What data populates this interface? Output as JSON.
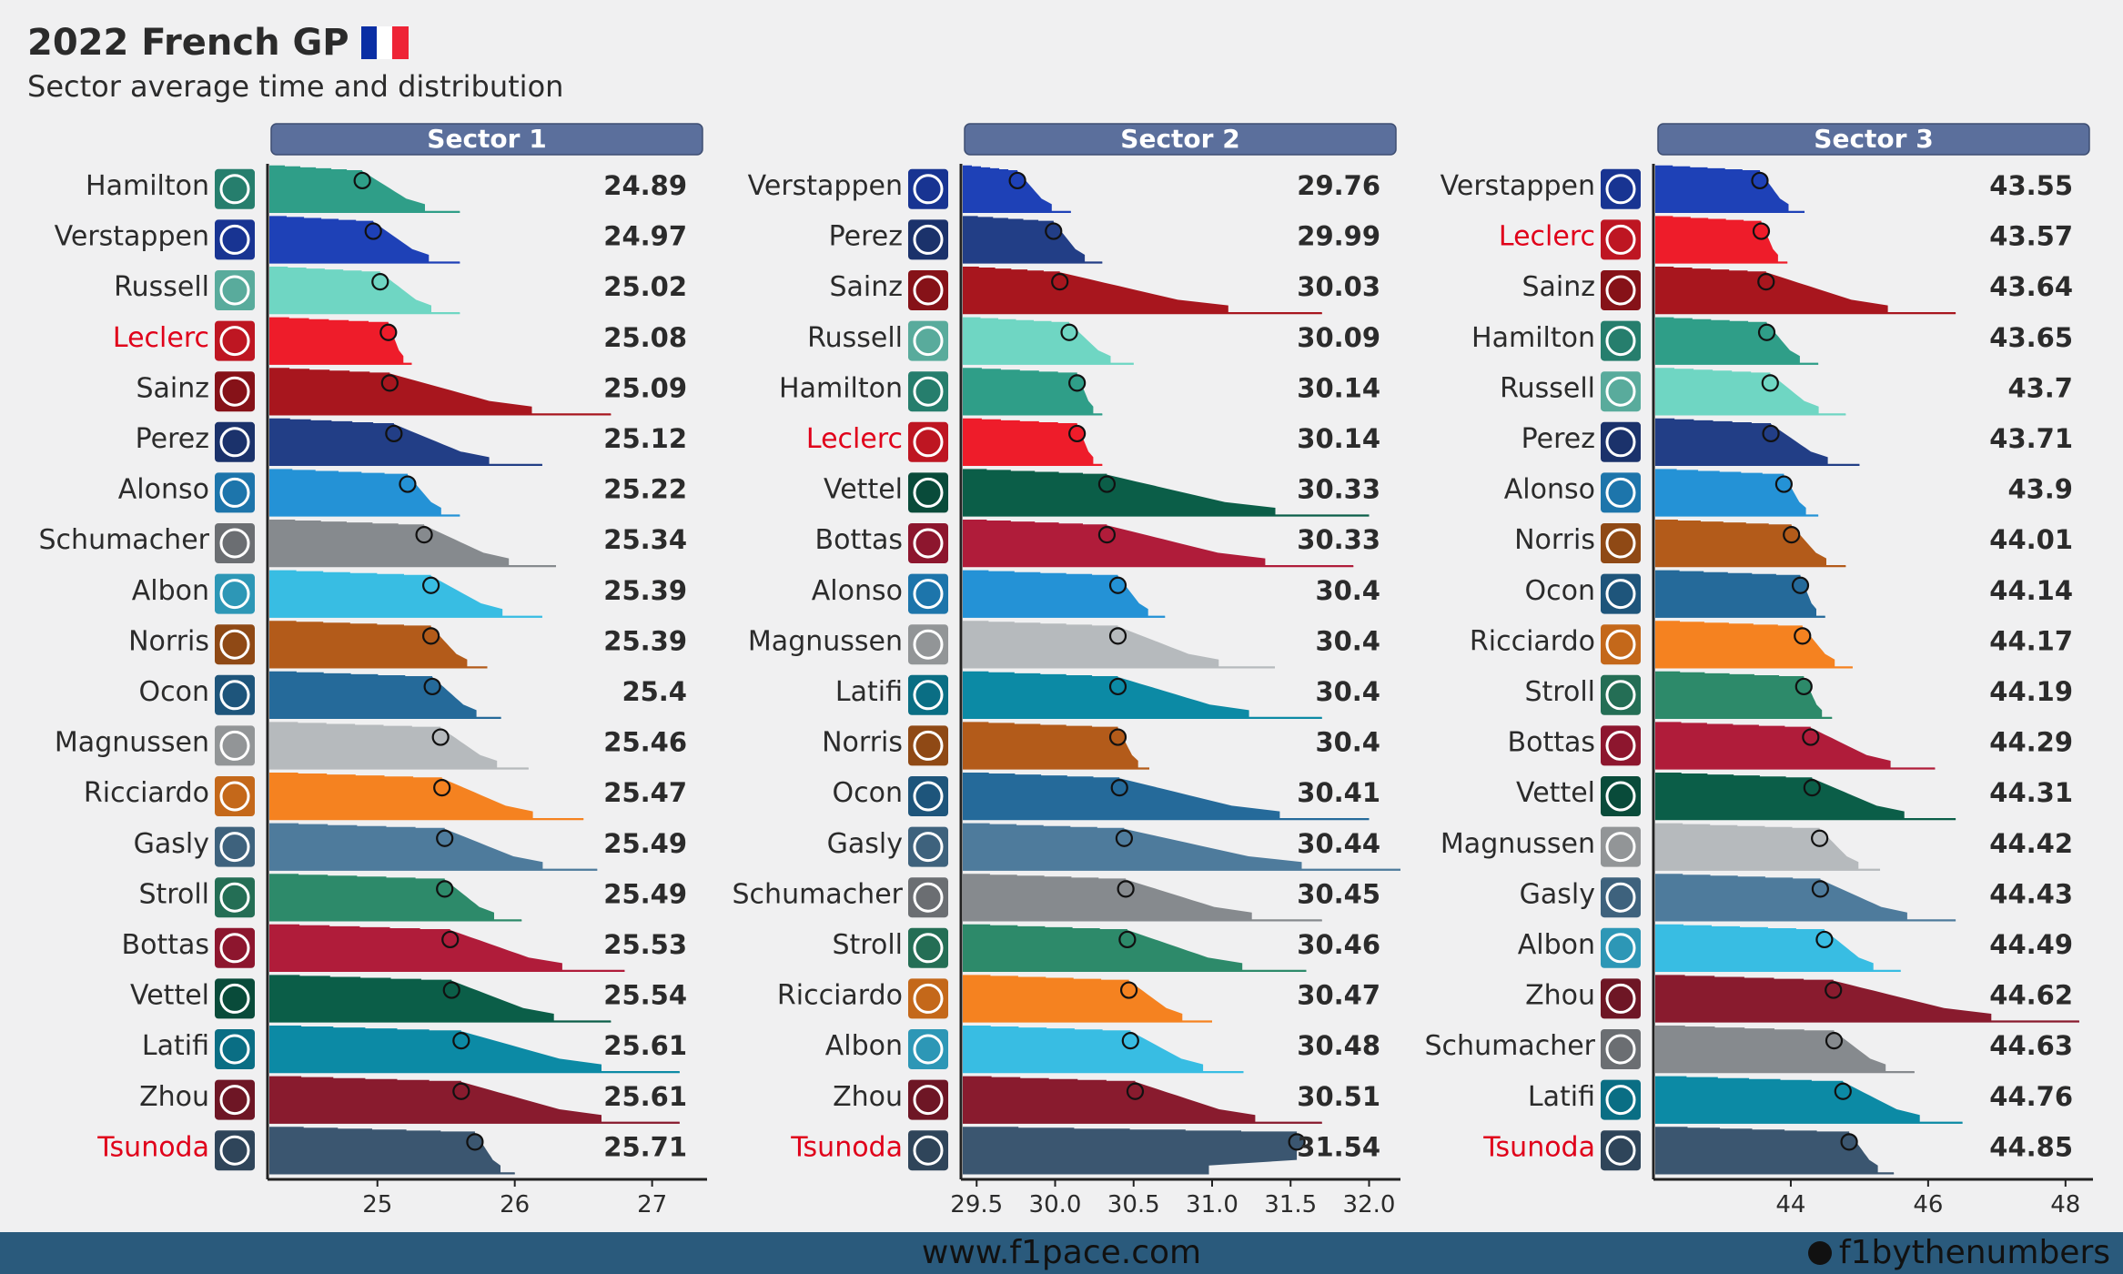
{
  "header": {
    "title": "2022 French GP",
    "subtitle": "Sector average time and distribution",
    "flag_colors": [
      "#0a2ea4",
      "#ffffff",
      "#ee2436"
    ]
  },
  "footer": {
    "url": "www.f1pace.com",
    "brand": "f1bythenumbers"
  },
  "team_colors": {
    "Red Bull": "#1e41b7",
    "Red Bull 2": "#223e86",
    "Ferrari": "#ee1c2a",
    "Ferrari 2": "#a8161e",
    "Mercedes": "#2f9e88",
    "Mercedes 2": "#6fd6c3",
    "Alpine": "#2492d6",
    "Alpine 2": "#256a9a",
    "Haas": "#868a8e",
    "Haas 2": "#b6babd",
    "Williams": "#38bde3",
    "Williams 2": "#0c8aa5",
    "McLaren": "#b35b1a",
    "McLaren 2": "#f58220",
    "AlphaTauri": "#4e7b9c",
    "AlphaTauri 2": "#3b5670",
    "Aston Martin": "#2d8a6a",
    "Aston Martin 2": "#0b5e48",
    "Alfa Romeo": "#b01c3a",
    "Alfa Romeo 2": "#891b2e"
  },
  "highlight_color": "#e0001a",
  "chart_data": [
    {
      "type": "distribution",
      "title": "Sector 1",
      "xlim": [
        24.2,
        27.4
      ],
      "xticks": [
        25,
        26,
        27
      ],
      "drivers": [
        {
          "name": "Hamilton",
          "team": "Mercedes",
          "color": "#2f9e88",
          "value": 24.89,
          "label": "24.89",
          "tail": 25.6
        },
        {
          "name": "Verstappen",
          "team": "Red Bull",
          "color": "#1e41b7",
          "value": 24.97,
          "label": "24.97",
          "tail": 25.6
        },
        {
          "name": "Russell",
          "team": "Mercedes",
          "color": "#6fd6c3",
          "value": 25.02,
          "label": "25.02",
          "tail": 25.6
        },
        {
          "name": "Leclerc",
          "team": "Ferrari",
          "color": "#ee1c2a",
          "value": 25.08,
          "label": "25.08",
          "tail": 25.25,
          "highlight": true
        },
        {
          "name": "Sainz",
          "team": "Ferrari",
          "color": "#a8161e",
          "value": 25.09,
          "label": "25.09",
          "tail": 26.7
        },
        {
          "name": "Perez",
          "team": "Red Bull",
          "color": "#223e86",
          "value": 25.12,
          "label": "25.12",
          "tail": 26.2
        },
        {
          "name": "Alonso",
          "team": "Alpine",
          "color": "#2492d6",
          "value": 25.22,
          "label": "25.22",
          "tail": 25.6
        },
        {
          "name": "Schumacher",
          "team": "Haas",
          "color": "#868a8e",
          "value": 25.34,
          "label": "25.34",
          "tail": 26.3
        },
        {
          "name": "Albon",
          "team": "Williams",
          "color": "#38bde3",
          "value": 25.39,
          "label": "25.39",
          "tail": 26.2
        },
        {
          "name": "Norris",
          "team": "McLaren",
          "color": "#b35b1a",
          "value": 25.39,
          "label": "25.39",
          "tail": 25.8
        },
        {
          "name": "Ocon",
          "team": "Alpine",
          "color": "#256a9a",
          "value": 25.4,
          "label": "25.4",
          "tail": 25.9
        },
        {
          "name": "Magnussen",
          "team": "Haas",
          "color": "#b6babd",
          "value": 25.46,
          "label": "25.46",
          "tail": 26.1
        },
        {
          "name": "Ricciardo",
          "team": "McLaren",
          "color": "#f58220",
          "value": 25.47,
          "label": "25.47",
          "tail": 26.5
        },
        {
          "name": "Gasly",
          "team": "AlphaTauri",
          "color": "#4e7b9c",
          "value": 25.49,
          "label": "25.49",
          "tail": 26.6
        },
        {
          "name": "Stroll",
          "team": "Aston Martin",
          "color": "#2d8a6a",
          "value": 25.49,
          "label": "25.49",
          "tail": 26.05
        },
        {
          "name": "Bottas",
          "team": "Alfa Romeo",
          "color": "#b01c3a",
          "value": 25.53,
          "label": "25.53",
          "tail": 26.8
        },
        {
          "name": "Vettel",
          "team": "Aston Martin",
          "color": "#0b5e48",
          "value": 25.54,
          "label": "25.54",
          "tail": 26.7
        },
        {
          "name": "Latifi",
          "team": "Williams",
          "color": "#0c8aa5",
          "value": 25.61,
          "label": "25.61",
          "tail": 27.2
        },
        {
          "name": "Zhou",
          "team": "Alfa Romeo",
          "color": "#891b2e",
          "value": 25.61,
          "label": "25.61",
          "tail": 27.2
        },
        {
          "name": "Tsunoda",
          "team": "AlphaTauri",
          "color": "#3b5670",
          "value": 25.71,
          "label": "25.71",
          "tail": 26.0,
          "highlight": true
        }
      ]
    },
    {
      "type": "distribution",
      "title": "Sector 2",
      "xlim": [
        29.4,
        32.2
      ],
      "xticks": [
        29.5,
        30.0,
        30.5,
        31.0,
        31.5,
        32.0
      ],
      "xtick_labels": [
        "29.5",
        "30.0",
        "30.5",
        "31.0",
        "31.5",
        "32.0"
      ],
      "drivers": [
        {
          "name": "Verstappen",
          "team": "Red Bull",
          "color": "#1e41b7",
          "value": 29.76,
          "label": "29.76",
          "tail": 30.1
        },
        {
          "name": "Perez",
          "team": "Red Bull",
          "color": "#223e86",
          "value": 29.99,
          "label": "29.99",
          "tail": 30.3
        },
        {
          "name": "Sainz",
          "team": "Ferrari",
          "color": "#a8161e",
          "value": 30.03,
          "label": "30.03",
          "tail": 31.7
        },
        {
          "name": "Russell",
          "team": "Mercedes",
          "color": "#6fd6c3",
          "value": 30.09,
          "label": "30.09",
          "tail": 30.5
        },
        {
          "name": "Hamilton",
          "team": "Mercedes",
          "color": "#2f9e88",
          "value": 30.14,
          "label": "30.14",
          "tail": 30.3
        },
        {
          "name": "Leclerc",
          "team": "Ferrari",
          "color": "#ee1c2a",
          "value": 30.14,
          "label": "30.14",
          "tail": 30.3,
          "highlight": true
        },
        {
          "name": "Vettel",
          "team": "Aston Martin",
          "color": "#0b5e48",
          "value": 30.33,
          "label": "30.33",
          "tail": 32.0
        },
        {
          "name": "Bottas",
          "team": "Alfa Romeo",
          "color": "#b01c3a",
          "value": 30.33,
          "label": "30.33",
          "tail": 31.9
        },
        {
          "name": "Alonso",
          "team": "Alpine",
          "color": "#2492d6",
          "value": 30.4,
          "label": "30.4",
          "tail": 30.7
        },
        {
          "name": "Magnussen",
          "team": "Haas",
          "color": "#b6babd",
          "value": 30.4,
          "label": "30.4",
          "tail": 31.4
        },
        {
          "name": "Latifi",
          "team": "Williams",
          "color": "#0c8aa5",
          "value": 30.4,
          "label": "30.4",
          "tail": 31.7
        },
        {
          "name": "Norris",
          "team": "McLaren",
          "color": "#b35b1a",
          "value": 30.4,
          "label": "30.4",
          "tail": 30.6
        },
        {
          "name": "Ocon",
          "team": "Alpine",
          "color": "#256a9a",
          "value": 30.41,
          "label": "30.41",
          "tail": 32.0
        },
        {
          "name": "Gasly",
          "team": "AlphaTauri",
          "color": "#4e7b9c",
          "value": 30.44,
          "label": "30.44",
          "tail": 32.2
        },
        {
          "name": "Schumacher",
          "team": "Haas",
          "color": "#868a8e",
          "value": 30.45,
          "label": "30.45",
          "tail": 31.7
        },
        {
          "name": "Stroll",
          "team": "Aston Martin",
          "color": "#2d8a6a",
          "value": 30.46,
          "label": "30.46",
          "tail": 31.6
        },
        {
          "name": "Ricciardo",
          "team": "McLaren",
          "color": "#f58220",
          "value": 30.47,
          "label": "30.47",
          "tail": 31.0
        },
        {
          "name": "Albon",
          "team": "Williams",
          "color": "#38bde3",
          "value": 30.48,
          "label": "30.48",
          "tail": 31.2
        },
        {
          "name": "Zhou",
          "team": "Alfa Romeo",
          "color": "#891b2e",
          "value": 30.51,
          "label": "30.51",
          "tail": 31.7
        },
        {
          "name": "Tsunoda",
          "team": "AlphaTauri",
          "color": "#3b5670",
          "value": 31.54,
          "label": "31.54",
          "tail": 30.98,
          "highlight": true
        }
      ]
    },
    {
      "type": "distribution",
      "title": "Sector 3",
      "xlim": [
        42.0,
        48.4
      ],
      "xticks": [
        44,
        46,
        48
      ],
      "drivers": [
        {
          "name": "Verstappen",
          "team": "Red Bull",
          "color": "#1e41b7",
          "value": 43.55,
          "label": "43.55",
          "tail": 44.2
        },
        {
          "name": "Leclerc",
          "team": "Ferrari",
          "color": "#ee1c2a",
          "value": 43.57,
          "label": "43.57",
          "tail": 43.95,
          "highlight": true
        },
        {
          "name": "Sainz",
          "team": "Ferrari",
          "color": "#a8161e",
          "value": 43.64,
          "label": "43.64",
          "tail": 46.4
        },
        {
          "name": "Hamilton",
          "team": "Mercedes",
          "color": "#2f9e88",
          "value": 43.65,
          "label": "43.65",
          "tail": 44.4
        },
        {
          "name": "Russell",
          "team": "Mercedes",
          "color": "#6fd6c3",
          "value": 43.7,
          "label": "43.7",
          "tail": 44.8
        },
        {
          "name": "Perez",
          "team": "Red Bull",
          "color": "#223e86",
          "value": 43.71,
          "label": "43.71",
          "tail": 45.0
        },
        {
          "name": "Alonso",
          "team": "Alpine",
          "color": "#2492d6",
          "value": 43.9,
          "label": "43.9",
          "tail": 44.4
        },
        {
          "name": "Norris",
          "team": "McLaren",
          "color": "#b35b1a",
          "value": 44.01,
          "label": "44.01",
          "tail": 44.8
        },
        {
          "name": "Ocon",
          "team": "Alpine",
          "color": "#256a9a",
          "value": 44.14,
          "label": "44.14",
          "tail": 44.5
        },
        {
          "name": "Ricciardo",
          "team": "McLaren",
          "color": "#f58220",
          "value": 44.17,
          "label": "44.17",
          "tail": 44.9
        },
        {
          "name": "Stroll",
          "team": "Aston Martin",
          "color": "#2d8a6a",
          "value": 44.19,
          "label": "44.19",
          "tail": 44.6
        },
        {
          "name": "Bottas",
          "team": "Alfa Romeo",
          "color": "#b01c3a",
          "value": 44.29,
          "label": "44.29",
          "tail": 46.1
        },
        {
          "name": "Vettel",
          "team": "Aston Martin",
          "color": "#0b5e48",
          "value": 44.31,
          "label": "44.31",
          "tail": 46.4
        },
        {
          "name": "Magnussen",
          "team": "Haas",
          "color": "#b6babd",
          "value": 44.42,
          "label": "44.42",
          "tail": 45.3
        },
        {
          "name": "Gasly",
          "team": "AlphaTauri",
          "color": "#4e7b9c",
          "value": 44.43,
          "label": "44.43",
          "tail": 46.4
        },
        {
          "name": "Albon",
          "team": "Williams",
          "color": "#38bde3",
          "value": 44.49,
          "label": "44.49",
          "tail": 45.6
        },
        {
          "name": "Zhou",
          "team": "Alfa Romeo",
          "color": "#891b2e",
          "value": 44.62,
          "label": "44.62",
          "tail": 48.2
        },
        {
          "name": "Schumacher",
          "team": "Haas",
          "color": "#868a8e",
          "value": 44.63,
          "label": "44.63",
          "tail": 45.8
        },
        {
          "name": "Latifi",
          "team": "Williams",
          "color": "#0c8aa5",
          "value": 44.76,
          "label": "44.76",
          "tail": 46.5
        },
        {
          "name": "Tsunoda",
          "team": "AlphaTauri",
          "color": "#3b5670",
          "value": 44.85,
          "label": "44.85",
          "tail": 45.5,
          "highlight": true
        }
      ]
    }
  ]
}
